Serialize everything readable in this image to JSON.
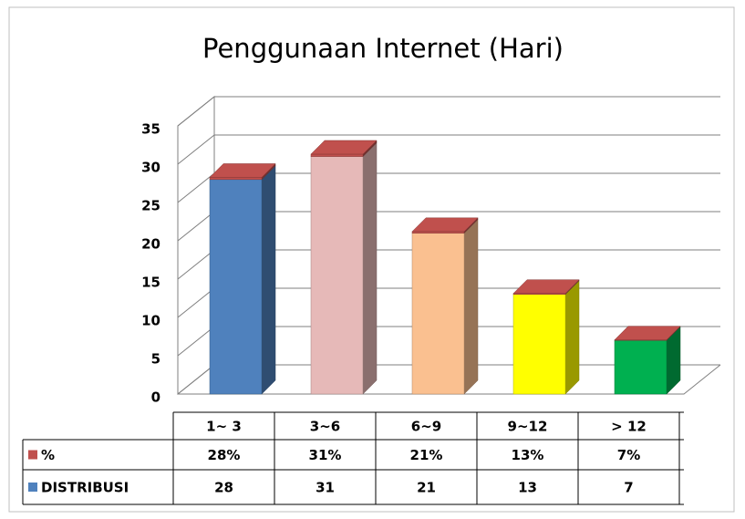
{
  "chart_data": {
    "type": "bar3d",
    "title": "Penggunaan Internet (Hari)",
    "categories": [
      "1~ 3",
      "3~6",
      "6~9",
      "9~12",
      "> 12"
    ],
    "bar_colors": [
      "#4f81bd",
      "#e6b9b8",
      "#fac090",
      "#ffff00",
      "#00b050"
    ],
    "series": [
      {
        "name": "%",
        "color": "#c0504d",
        "values": [
          0.28,
          0.31,
          0.21,
          0.13,
          0.07
        ],
        "value_labels": [
          "28%",
          "31%",
          "21%",
          "13%",
          "7%"
        ]
      },
      {
        "name": "DISTRIBUSI",
        "color": "#4f81bd",
        "values": [
          28,
          31,
          21,
          13,
          7
        ]
      }
    ],
    "ylim": [
      0,
      35
    ],
    "yticks": [
      0,
      5,
      10,
      15,
      20,
      25,
      30,
      35
    ],
    "grid": true
  }
}
